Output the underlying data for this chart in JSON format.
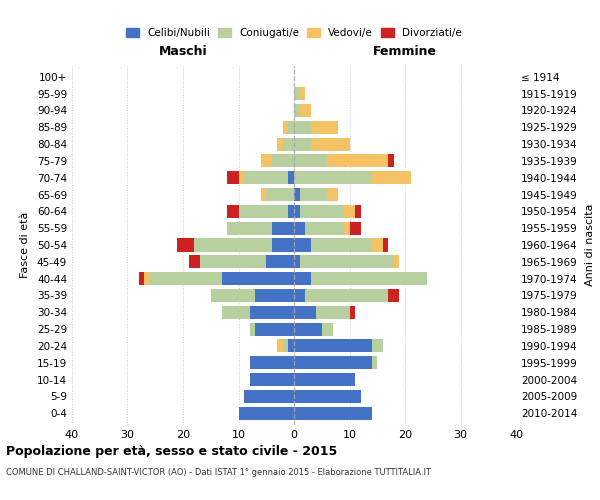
{
  "age_groups": [
    "100+",
    "95-99",
    "90-94",
    "85-89",
    "80-84",
    "75-79",
    "70-74",
    "65-69",
    "60-64",
    "55-59",
    "50-54",
    "45-49",
    "40-44",
    "35-39",
    "30-34",
    "25-29",
    "20-24",
    "15-19",
    "10-14",
    "5-9",
    "0-4"
  ],
  "birth_years": [
    "≤ 1914",
    "1915-1919",
    "1920-1924",
    "1925-1929",
    "1930-1934",
    "1935-1939",
    "1940-1944",
    "1945-1949",
    "1950-1954",
    "1955-1959",
    "1960-1964",
    "1965-1969",
    "1970-1974",
    "1975-1979",
    "1980-1984",
    "1985-1989",
    "1990-1994",
    "1995-1999",
    "2000-2004",
    "2005-2009",
    "2010-2014"
  ],
  "male": {
    "celibi": [
      0,
      0,
      0,
      0,
      0,
      0,
      1,
      0,
      1,
      4,
      4,
      5,
      13,
      7,
      8,
      7,
      1,
      8,
      8,
      9,
      10
    ],
    "coniugati": [
      0,
      0,
      0,
      1,
      2,
      4,
      8,
      5,
      9,
      8,
      14,
      12,
      13,
      8,
      5,
      1,
      1,
      0,
      0,
      0,
      0
    ],
    "vedovi": [
      0,
      0,
      0,
      1,
      1,
      2,
      1,
      1,
      0,
      0,
      0,
      0,
      1,
      0,
      0,
      0,
      1,
      0,
      0,
      0,
      0
    ],
    "divorziati": [
      0,
      0,
      0,
      0,
      0,
      0,
      2,
      0,
      2,
      0,
      3,
      2,
      1,
      0,
      0,
      0,
      0,
      0,
      0,
      0,
      0
    ]
  },
  "female": {
    "nubili": [
      0,
      0,
      0,
      0,
      0,
      0,
      0,
      1,
      1,
      2,
      3,
      1,
      3,
      2,
      4,
      5,
      14,
      14,
      11,
      12,
      14
    ],
    "coniugate": [
      0,
      1,
      1,
      3,
      3,
      6,
      14,
      5,
      8,
      7,
      11,
      17,
      21,
      15,
      6,
      2,
      2,
      1,
      0,
      0,
      0
    ],
    "vedove": [
      0,
      1,
      2,
      5,
      7,
      11,
      7,
      2,
      2,
      1,
      2,
      1,
      0,
      0,
      0,
      0,
      0,
      0,
      0,
      0,
      0
    ],
    "divorziate": [
      0,
      0,
      0,
      0,
      0,
      1,
      0,
      0,
      1,
      2,
      1,
      0,
      0,
      2,
      1,
      0,
      0,
      0,
      0,
      0,
      0
    ]
  },
  "colors": {
    "celibi": "#4472C4",
    "coniugati": "#b8cfa0",
    "vedovi": "#f5c165",
    "divorziati": "#cc2222"
  },
  "xlim": 40,
  "title": "Popolazione per età, sesso e stato civile - 2015",
  "subtitle": "COMUNE DI CHALLAND-SAINT-VICTOR (AO) - Dati ISTAT 1° gennaio 2015 - Elaborazione TUTTITALIA.IT",
  "ylabel_left": "Fasce di età",
  "ylabel_right": "Anni di nascita",
  "xlabel_left": "Maschi",
  "xlabel_right": "Femmine"
}
